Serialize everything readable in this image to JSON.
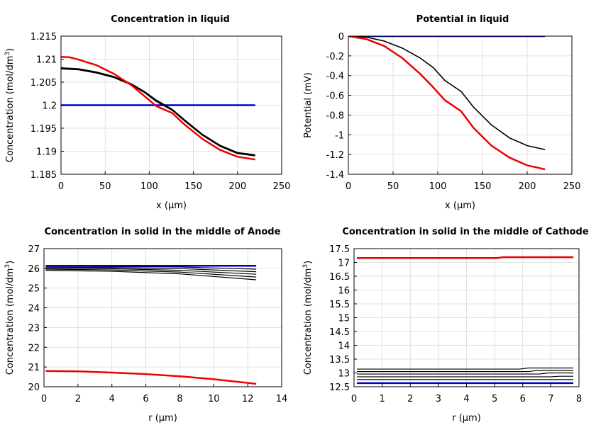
{
  "chart_data": [
    {
      "type": "line",
      "title": "Concentration in liquid",
      "xlabel": "x (µm)",
      "ylabel": "Concentration (mol/dm",
      "ylabel_sup": "3",
      "ylabel_end": ")",
      "xlim": [
        0,
        250
      ],
      "ylim": [
        1.185,
        1.215
      ],
      "xticks": [
        0,
        50,
        100,
        150,
        200,
        250
      ],
      "yticks": [
        1.185,
        1.19,
        1.195,
        1.2,
        1.205,
        1.21,
        1.215
      ],
      "ytick_labels": [
        "1.185",
        "1.19",
        "1.195",
        "1.2",
        "1.205",
        "1.21",
        "1.215"
      ],
      "grid": true,
      "series": [
        {
          "color": "#0000cc",
          "width": 2.5,
          "x": [
            0,
            220
          ],
          "y": [
            1.2,
            1.2
          ]
        },
        {
          "color": "#000000",
          "width": 1.6,
          "x": [
            0,
            20,
            40,
            60,
            80,
            95,
            108,
            126,
            140,
            160,
            180,
            200,
            220
          ],
          "y": [
            1.2081,
            1.2079,
            1.2072,
            1.2062,
            1.2046,
            1.2029,
            1.2011,
            1.1991,
            1.1968,
            1.1937,
            1.1913,
            1.1897,
            1.1892
          ]
        },
        {
          "color": "#000000",
          "width": 1.6,
          "x": [
            0,
            20,
            40,
            60,
            80,
            95,
            108,
            126,
            140,
            160,
            180,
            200,
            220
          ],
          "y": [
            1.2079,
            1.2077,
            1.207,
            1.206,
            1.2044,
            1.2027,
            1.2008,
            1.1989,
            1.1966,
            1.1935,
            1.1911,
            1.1895,
            1.189
          ]
        },
        {
          "color": "#ee0000",
          "width": 2.5,
          "x": [
            0,
            10,
            20,
            40,
            60,
            80,
            95,
            108,
            126,
            140,
            160,
            180,
            200,
            220
          ],
          "y": [
            1.2105,
            1.2104,
            1.2099,
            1.2087,
            1.2068,
            1.2043,
            1.2019,
            1.1998,
            1.1983,
            1.1958,
            1.1927,
            1.1903,
            1.1888,
            1.1882
          ]
        }
      ]
    },
    {
      "type": "line",
      "title": "Potential in liquid",
      "xlabel": "x (µm)",
      "ylabel": "Potential (mV)",
      "xlim": [
        0,
        250
      ],
      "ylim": [
        -1.4,
        0
      ],
      "xticks": [
        0,
        50,
        100,
        150,
        200,
        250
      ],
      "yticks": [
        0,
        -0.2,
        -0.4,
        -0.6,
        -0.8,
        -1,
        -1.2,
        -1.4
      ],
      "ytick_labels": [
        "0",
        "-0.2",
        "-0.4",
        "-0.6",
        "-0.8",
        "-1",
        "-1.2",
        "-1.4"
      ],
      "grid": true,
      "series": [
        {
          "color": "#0000cc",
          "width": 2.5,
          "x": [
            0,
            220
          ],
          "y": [
            0,
            0
          ]
        },
        {
          "color": "#000000",
          "width": 1.6,
          "x": [
            0,
            20,
            40,
            60,
            80,
            95,
            108,
            126,
            140,
            160,
            180,
            200,
            220
          ],
          "y": [
            0,
            -0.01,
            -0.05,
            -0.12,
            -0.22,
            -0.32,
            -0.45,
            -0.56,
            -0.72,
            -0.9,
            -1.03,
            -1.11,
            -1.15
          ]
        },
        {
          "color": "#ee0000",
          "width": 2.5,
          "x": [
            0,
            20,
            40,
            60,
            80,
            95,
            108,
            126,
            140,
            160,
            180,
            200,
            220
          ],
          "y": [
            0,
            -0.03,
            -0.1,
            -0.22,
            -0.38,
            -0.52,
            -0.65,
            -0.76,
            -0.93,
            -1.11,
            -1.23,
            -1.31,
            -1.35
          ]
        }
      ]
    },
    {
      "type": "line",
      "title": "Concentration in solid in the middle of Anode",
      "xlabel": "r (µm)",
      "ylabel": "Concentration (mol/dm",
      "ylabel_sup": "3",
      "ylabel_end": ")",
      "xlim": [
        0,
        14
      ],
      "ylim": [
        20,
        27
      ],
      "xticks": [
        0,
        2,
        4,
        6,
        8,
        10,
        12,
        14
      ],
      "yticks": [
        20,
        21,
        22,
        23,
        24,
        25,
        26,
        27
      ],
      "ytick_labels": [
        "20",
        "21",
        "22",
        "23",
        "24",
        "25",
        "26",
        "27"
      ],
      "grid": true,
      "series": [
        {
          "color": "#000000",
          "width": 1.2,
          "x": [
            0.1,
            4,
            8,
            12.5
          ],
          "y": [
            26.1,
            26.09,
            26.07,
            25.96
          ]
        },
        {
          "color": "#000000",
          "width": 1.2,
          "x": [
            0.1,
            4,
            8,
            12.5
          ],
          "y": [
            26.06,
            26.04,
            25.99,
            25.83
          ]
        },
        {
          "color": "#000000",
          "width": 1.2,
          "x": [
            0.1,
            4,
            8,
            12.5
          ],
          "y": [
            26.01,
            25.98,
            25.9,
            25.7
          ]
        },
        {
          "color": "#000000",
          "width": 1.2,
          "x": [
            0.1,
            4,
            8,
            12.5
          ],
          "y": [
            25.96,
            25.92,
            25.81,
            25.56
          ]
        },
        {
          "color": "#000000",
          "width": 1.2,
          "x": [
            0.1,
            4,
            8,
            12.5
          ],
          "y": [
            25.9,
            25.85,
            25.72,
            25.42
          ]
        },
        {
          "color": "#0000cc",
          "width": 2.5,
          "x": [
            0.1,
            12.5
          ],
          "y": [
            26.13,
            26.13
          ]
        },
        {
          "color": "#ee0000",
          "width": 2.5,
          "x": [
            0.1,
            2,
            4,
            6,
            8,
            10,
            12.5
          ],
          "y": [
            20.8,
            20.78,
            20.72,
            20.64,
            20.53,
            20.38,
            20.15
          ]
        }
      ]
    },
    {
      "type": "line",
      "title": "Concentration in solid in the middle of Cathode",
      "xlabel": "r (µm)",
      "ylabel": "Concentration (mol/dm",
      "ylabel_sup": "3",
      "ylabel_end": ")",
      "xlim": [
        0,
        8
      ],
      "ylim": [
        12.5,
        17.5
      ],
      "xticks": [
        0,
        1,
        2,
        3,
        4,
        5,
        6,
        7,
        8
      ],
      "yticks": [
        12.5,
        13,
        13.5,
        14,
        14.5,
        15,
        15.5,
        16,
        16.5,
        17,
        17.5
      ],
      "ytick_labels": [
        "12.5",
        "13",
        "13.5",
        "14",
        "14.5",
        "15",
        "15.5",
        "16",
        "16.5",
        "17",
        "17.5"
      ],
      "grid": true,
      "series": [
        {
          "color": "#000000",
          "width": 1.2,
          "x": [
            0.1,
            5.9,
            6.2,
            7.8
          ],
          "y": [
            13.14,
            13.14,
            13.18,
            13.18
          ]
        },
        {
          "color": "#000000",
          "width": 1.2,
          "x": [
            0.1,
            6.2,
            6.5,
            7.8
          ],
          "y": [
            13.05,
            13.05,
            13.09,
            13.09
          ]
        },
        {
          "color": "#000000",
          "width": 1.2,
          "x": [
            0.1,
            6.6,
            6.9,
            7.8
          ],
          "y": [
            12.96,
            12.96,
            13.0,
            13.0
          ]
        },
        {
          "color": "#000000",
          "width": 1.2,
          "x": [
            0.1,
            7.0,
            7.3,
            7.8
          ],
          "y": [
            12.86,
            12.86,
            12.88,
            12.88
          ]
        },
        {
          "color": "#000000",
          "width": 1.2,
          "x": [
            0.1,
            7.8
          ],
          "y": [
            12.76,
            12.76
          ]
        },
        {
          "color": "#0000cc",
          "width": 2.5,
          "x": [
            0.1,
            7.8
          ],
          "y": [
            12.63,
            12.63
          ]
        },
        {
          "color": "#ee0000",
          "width": 2.5,
          "x": [
            0.1,
            5.1,
            5.3,
            7.8
          ],
          "y": [
            17.16,
            17.16,
            17.19,
            17.19
          ]
        }
      ]
    }
  ]
}
